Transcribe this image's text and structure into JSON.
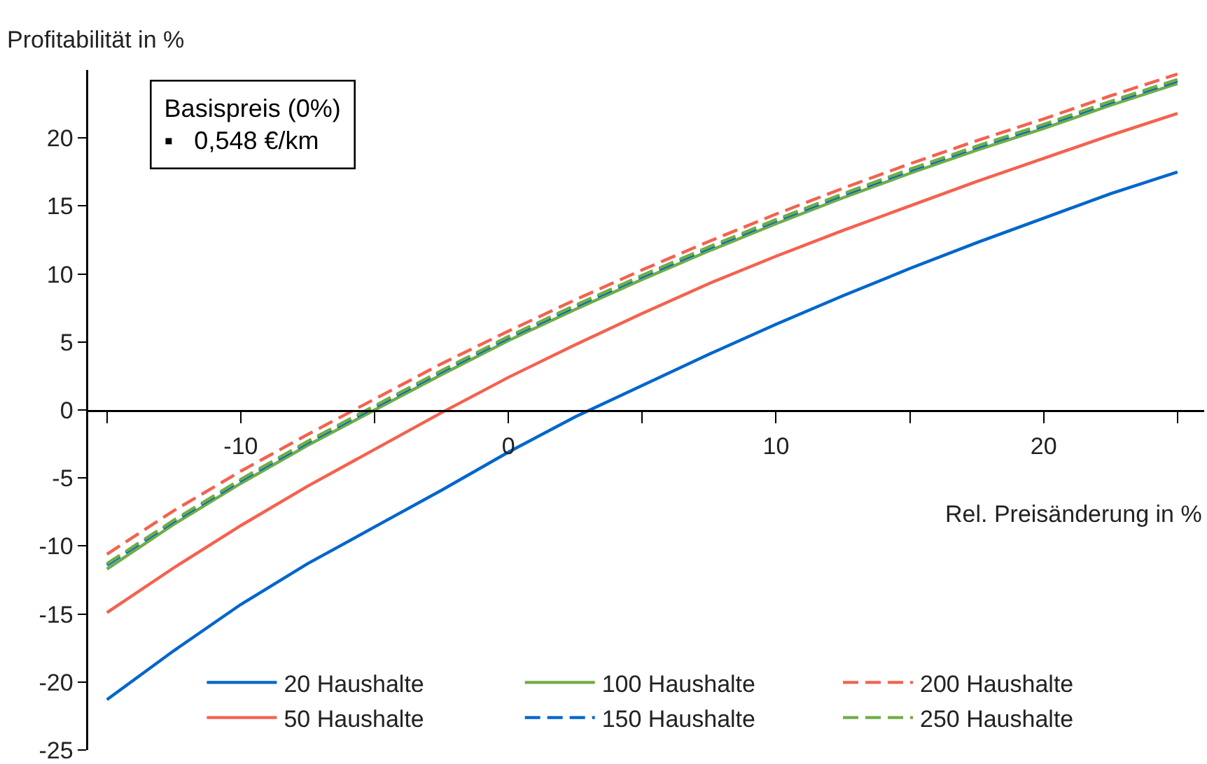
{
  "chart_data": {
    "type": "line",
    "ylabel": "Profitabilität in %",
    "xlabel": "Rel. Preisänderung in %",
    "annotations": [
      "Basispreis (0%)\n▪   0,548 €/km"
    ],
    "x": [
      -15,
      -12.5,
      -10,
      -7.5,
      -5,
      -2.5,
      0,
      2.5,
      5,
      7.5,
      10,
      12.5,
      15,
      17.5,
      20,
      22.5,
      25
    ],
    "xlim": [
      -15.7,
      26
    ],
    "xticks": [
      {
        "value": -15,
        "label": null
      },
      -10,
      {
        "value": -5,
        "label": null
      },
      0,
      {
        "value": 5,
        "label": null
      },
      10,
      {
        "value": 15,
        "label": null
      },
      20,
      {
        "value": 25,
        "label": null
      }
    ],
    "ylim": [
      -25,
      25
    ],
    "yticks": [
      -25,
      -20,
      -15,
      -10,
      -5,
      0,
      5,
      10,
      15,
      20
    ],
    "grid": false,
    "legend": "bottom",
    "marker": "none",
    "series": [
      {
        "name": "20 Haushalte",
        "color": "#0066cc",
        "line_style": "solid",
        "values": [
          -21.3,
          -17.7,
          -14.3,
          -11.3,
          -8.6,
          -5.9,
          -3.1,
          -0.5,
          1.8,
          4.1,
          6.3,
          8.4,
          10.4,
          12.3,
          14.1,
          15.9,
          17.5
        ]
      },
      {
        "name": "100 Haushalte",
        "color": "#70ad47",
        "line_style": "solid",
        "values": [
          -11.7,
          -8.4,
          -5.4,
          -2.6,
          0.0,
          2.6,
          5.1,
          7.4,
          9.6,
          11.7,
          13.7,
          15.6,
          17.4,
          19.1,
          20.7,
          22.4,
          24.0
        ]
      },
      {
        "name": "200 Haushalte",
        "color": "#f4624f",
        "line_style": "dashed",
        "values": [
          -10.6,
          -7.4,
          -4.5,
          -1.8,
          0.8,
          3.4,
          5.8,
          8.1,
          10.3,
          12.4,
          14.4,
          16.3,
          18.1,
          19.8,
          21.4,
          23.1,
          24.7
        ]
      },
      {
        "name": "50 Haushalte",
        "color": "#f4624f",
        "line_style": "solid",
        "values": [
          -14.9,
          -11.6,
          -8.5,
          -5.6,
          -2.9,
          -0.2,
          2.4,
          4.8,
          7.1,
          9.3,
          11.3,
          13.2,
          15.0,
          16.8,
          18.5,
          20.2,
          21.8
        ]
      },
      {
        "name": "150 Haushalte",
        "color": "#0066cc",
        "line_style": "dashed",
        "values": [
          -11.4,
          -8.2,
          -5.2,
          -2.4,
          0.2,
          2.8,
          5.3,
          7.6,
          9.8,
          11.9,
          13.9,
          15.8,
          17.6,
          19.3,
          20.9,
          22.6,
          24.2
        ]
      },
      {
        "name": "250 Haushalte",
        "color": "#70ad47",
        "line_style": "dashed",
        "values": [
          -11.3,
          -8.1,
          -5.1,
          -2.3,
          0.3,
          2.9,
          5.4,
          7.7,
          9.9,
          12.0,
          14.0,
          15.9,
          17.7,
          19.4,
          21.0,
          22.7,
          24.3
        ]
      }
    ]
  }
}
